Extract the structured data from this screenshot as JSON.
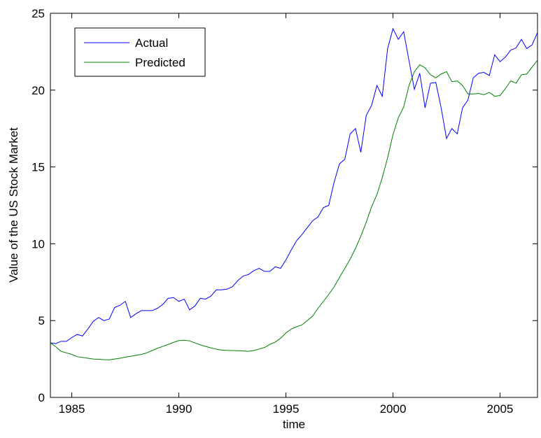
{
  "chart_data": {
    "type": "line",
    "title": "",
    "xlabel": "time",
    "ylabel": "Value of the US Stock Market",
    "xlim": [
      1984,
      2006.75
    ],
    "ylim": [
      0,
      25
    ],
    "xticks": [
      1985,
      1990,
      1995,
      2000,
      2005
    ],
    "yticks": [
      0,
      5,
      10,
      15,
      20,
      25
    ],
    "grid": false,
    "legend_position": "top-left",
    "colors": {
      "actual": "#0000ff",
      "predicted": "#008000"
    },
    "x": [
      1984.0,
      1984.25,
      1984.5,
      1984.75,
      1985.0,
      1985.25,
      1985.5,
      1985.75,
      1986.0,
      1986.25,
      1986.5,
      1986.75,
      1987.0,
      1987.25,
      1987.5,
      1987.75,
      1988.0,
      1988.25,
      1988.5,
      1988.75,
      1989.0,
      1989.25,
      1989.5,
      1989.75,
      1990.0,
      1990.25,
      1990.5,
      1990.75,
      1991.0,
      1991.25,
      1991.5,
      1991.75,
      1992.0,
      1992.25,
      1992.5,
      1992.75,
      1993.0,
      1993.25,
      1993.5,
      1993.75,
      1994.0,
      1994.25,
      1994.5,
      1994.75,
      1995.0,
      1995.25,
      1995.5,
      1995.75,
      1996.0,
      1996.25,
      1996.5,
      1996.75,
      1997.0,
      1997.25,
      1997.5,
      1997.75,
      1998.0,
      1998.25,
      1998.5,
      1998.75,
      1999.0,
      1999.25,
      1999.5,
      1999.75,
      2000.0,
      2000.25,
      2000.5,
      2000.75,
      2001.0,
      2001.25,
      2001.5,
      2001.75,
      2002.0,
      2002.25,
      2002.5,
      2002.75,
      2003.0,
      2003.25,
      2003.5,
      2003.75,
      2004.0,
      2004.25,
      2004.5,
      2004.75,
      2005.0,
      2005.25,
      2005.5,
      2005.75,
      2006.0,
      2006.25,
      2006.5,
      2006.75
    ],
    "series": [
      {
        "name": "Actual",
        "values": [
          3.55,
          3.5,
          3.65,
          3.65,
          3.9,
          4.1,
          4.0,
          4.45,
          4.95,
          5.2,
          5.0,
          5.1,
          5.85,
          6.0,
          6.25,
          5.2,
          5.45,
          5.65,
          5.65,
          5.65,
          5.8,
          6.05,
          6.45,
          6.5,
          6.25,
          6.4,
          5.7,
          5.95,
          6.45,
          6.4,
          6.6,
          7.0,
          7.0,
          7.05,
          7.2,
          7.6,
          7.9,
          8.0,
          8.25,
          8.4,
          8.2,
          8.2,
          8.5,
          8.4,
          8.95,
          9.6,
          10.2,
          10.6,
          11.05,
          11.5,
          11.75,
          12.35,
          12.5,
          14.0,
          15.2,
          15.5,
          17.15,
          17.5,
          15.95,
          18.35,
          19.0,
          20.3,
          19.6,
          22.7,
          24.0,
          23.3,
          23.8,
          21.9,
          20.05,
          21.1,
          18.85,
          20.45,
          20.5,
          18.85,
          16.85,
          17.5,
          17.15,
          18.85,
          19.35,
          20.8,
          21.1,
          21.15,
          20.95,
          22.3,
          21.85,
          22.15,
          22.6,
          22.75,
          23.3,
          22.7,
          22.95,
          23.75
        ]
      },
      {
        "name": "Predicted",
        "values": [
          3.55,
          3.3,
          3.0,
          2.9,
          2.8,
          2.65,
          2.6,
          2.55,
          2.5,
          2.48,
          2.46,
          2.45,
          2.5,
          2.55,
          2.62,
          2.68,
          2.74,
          2.8,
          2.9,
          3.05,
          3.2,
          3.32,
          3.45,
          3.58,
          3.7,
          3.72,
          3.68,
          3.55,
          3.42,
          3.32,
          3.22,
          3.14,
          3.08,
          3.06,
          3.05,
          3.04,
          3.02,
          3.0,
          3.05,
          3.15,
          3.25,
          3.45,
          3.6,
          3.85,
          4.2,
          4.45,
          4.6,
          4.72,
          5.0,
          5.3,
          5.8,
          6.25,
          6.7,
          7.2,
          7.8,
          8.4,
          9.0,
          9.7,
          10.5,
          11.4,
          12.4,
          13.2,
          14.3,
          15.6,
          17.1,
          18.2,
          18.9,
          20.3,
          21.2,
          21.65,
          21.45,
          21.0,
          20.8,
          21.05,
          21.2,
          20.55,
          20.6,
          20.3,
          19.75,
          19.75,
          19.78,
          19.7,
          19.85,
          19.6,
          19.65,
          20.1,
          20.6,
          20.45,
          21.0,
          21.05,
          21.5,
          21.95
        ]
      }
    ]
  }
}
